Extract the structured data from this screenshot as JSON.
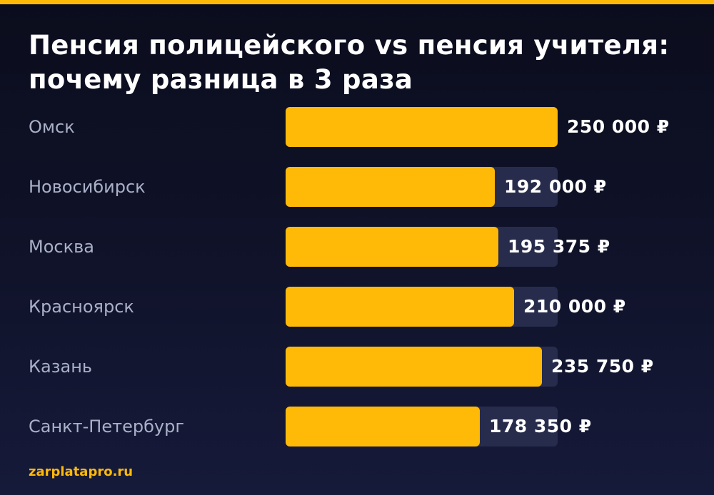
{
  "chart_data": {
    "type": "bar",
    "orientation": "horizontal",
    "title_lines": [
      "Пенсия полицейского vs пенсия учителя:",
      "почему разница в 3 раза"
    ],
    "categories": [
      "Омск",
      "Новосибирск",
      "Москва",
      "Красноярск",
      "Казань",
      "Санкт-Петербург"
    ],
    "values": [
      250000,
      192000,
      195375,
      210000,
      235750,
      178350
    ],
    "value_labels": [
      "250 000 ₽",
      "192 000 ₽",
      "195 375 ₽",
      "210 000 ₽",
      "235 750 ₽",
      "178 350 ₽"
    ],
    "xlim": [
      0,
      250000
    ],
    "grid": false,
    "legend": "none"
  },
  "source": "zarplatapro.ru",
  "colors": {
    "accent": "#ffba08",
    "bar_fill": "#ffba08",
    "bar_track": "#282c4c",
    "background_top": "#0b0d1d",
    "background_bottom": "#161a3a",
    "label_text": "#aab0c8",
    "value_text": "#ffffff"
  }
}
